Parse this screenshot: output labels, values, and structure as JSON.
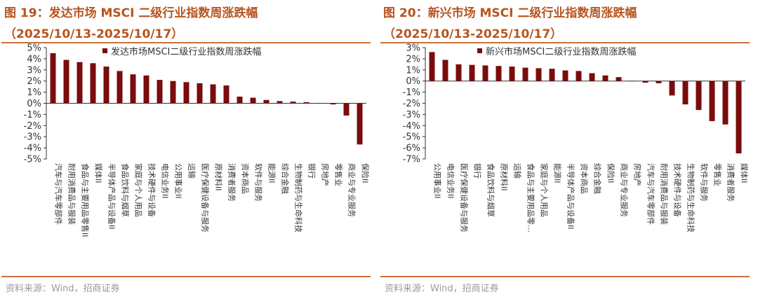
{
  "colors": {
    "title": "#b8541e",
    "rule": "#c8703c",
    "bar": "#7a0c0c",
    "source": "#9a9a9a"
  },
  "panels": [
    {
      "title_line1": "图 19：发达市场 MSCI 二级行业指数周涨跌幅",
      "title_line2": "（2025/10/13-2025/10/17）",
      "source": "资料来源：Wind，招商证券",
      "chart_data": {
        "type": "bar",
        "legend": "发达市场MSCI二级行业指数周涨跌幅",
        "legend_position": "top-right",
        "ylim": [
          -5,
          5
        ],
        "yticks": [
          5,
          4,
          3,
          2,
          1,
          0,
          -1,
          -2,
          -3,
          -4,
          -5
        ],
        "ytick_labels": [
          "5%",
          "4%",
          "3%",
          "2%",
          "1%",
          "0%",
          "-1%",
          "-2%",
          "-3%",
          "-4%",
          "-5%"
        ],
        "categories": [
          "汽车与汽车零部件",
          "耐用消费品与服装",
          "食品与主要用品零售II",
          "媒体II",
          "半导体产品与设备II",
          "食品饮料与烟草",
          "家庭与个人用品",
          "技术硬件与设备",
          "电信业务II",
          "公用事业II",
          "运输",
          "医疗保健设备与服务",
          "原材料II",
          "消费者服务",
          "资本商品",
          "软件与服务",
          "能源II",
          "综合金融",
          "生物制药与生命科技",
          "银行",
          "房地产",
          "零售业",
          "商业与专业服务",
          "保险II"
        ],
        "values": [
          4.5,
          3.9,
          3.7,
          3.6,
          3.3,
          2.9,
          2.6,
          2.5,
          2.1,
          2.0,
          1.9,
          1.8,
          1.7,
          1.6,
          0.6,
          0.5,
          0.3,
          0.2,
          0.15,
          0.1,
          0.0,
          -0.1,
          -1.1,
          -3.7
        ]
      }
    },
    {
      "title_line1": "图 20：新兴市场 MSCI 二级行业指数周涨跌幅",
      "title_line2": "（2025/10/13-2025/10/17）",
      "source": "资料来源：Wind，招商证券",
      "chart_data": {
        "type": "bar",
        "legend": "新兴市场MSCI二级行业指数周涨跌幅",
        "legend_position": "top-right",
        "ylim": [
          -7,
          3
        ],
        "yticks": [
          3,
          2,
          1,
          0,
          -1,
          -2,
          -3,
          -4,
          -5,
          -6,
          -7
        ],
        "ytick_labels": [
          "3%",
          "2%",
          "1%",
          "0%",
          "-1%",
          "-2%",
          "-3%",
          "-4%",
          "-5%",
          "-6%",
          "-7%"
        ],
        "categories": [
          "公用事业II",
          "电信业务II",
          "医疗保健设备与服务",
          "银行",
          "食品饮料与烟草",
          "原材料II",
          "运输",
          "食品与主要用品零…",
          "家庭与个人用品",
          "能源II",
          "半导体产品与设备II",
          "资本商品",
          "综合金融",
          "保险II",
          "商业与专业服务",
          "房地产",
          "汽车与汽车零部件",
          "耐用消费品与服装",
          "技术硬件与设备",
          "生物制药与生命科技",
          "软件与服务",
          "零售业",
          "消费者服务",
          "媒体II"
        ],
        "values": [
          2.6,
          1.9,
          1.5,
          1.45,
          1.4,
          1.35,
          1.3,
          1.2,
          1.15,
          1.1,
          0.95,
          0.9,
          0.7,
          0.5,
          0.35,
          0.0,
          -0.15,
          -0.2,
          -1.3,
          -2.1,
          -2.6,
          -3.6,
          -3.9,
          -6.5
        ]
      }
    }
  ]
}
